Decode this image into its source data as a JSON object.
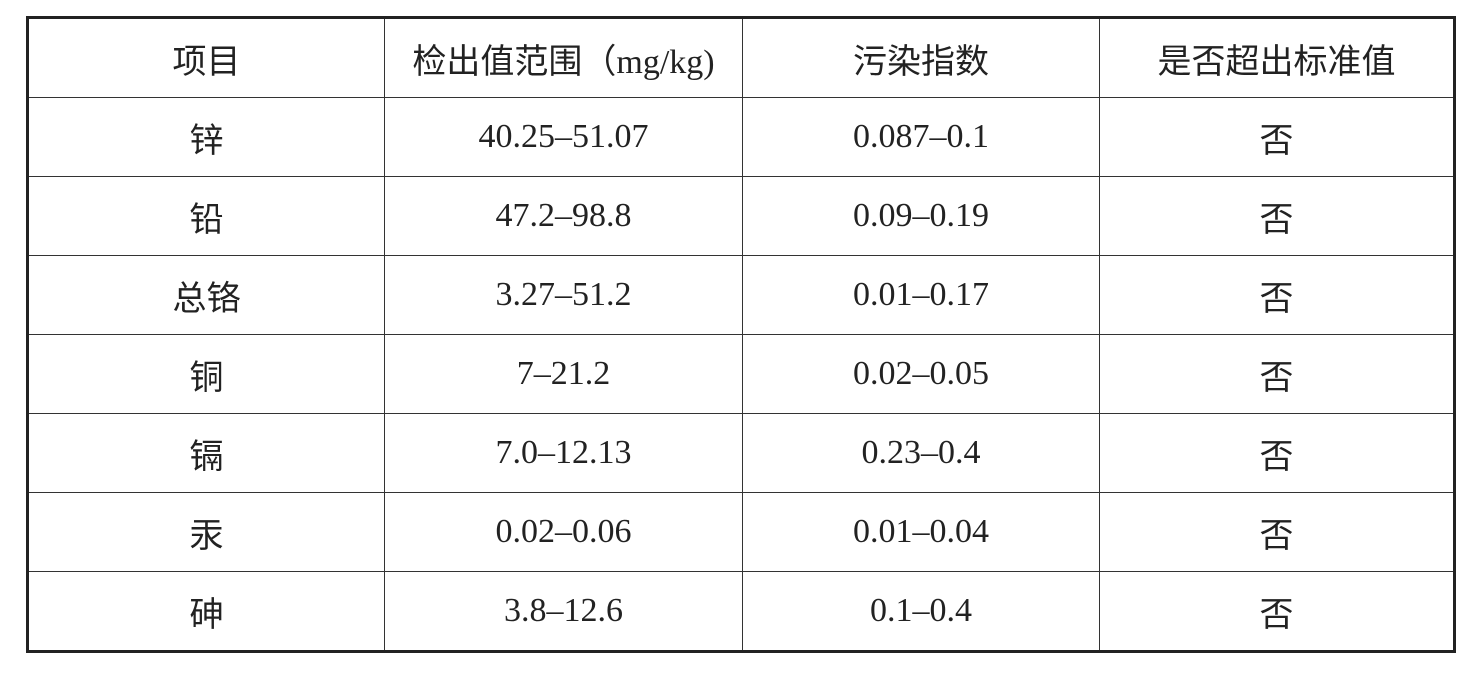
{
  "table": {
    "header": [
      "项目",
      "检出值范围（mg/kg)",
      "污染指数",
      "是否超出标准值"
    ],
    "rows": [
      [
        "锌",
        "40.25–51.07",
        "0.087–0.1",
        "否"
      ],
      [
        "铅",
        "47.2–98.8",
        "0.09–0.19",
        "否"
      ],
      [
        "总铬",
        "3.27–51.2",
        "0.01–0.17",
        "否"
      ],
      [
        "铜",
        "7–21.2",
        "0.02–0.05",
        "否"
      ],
      [
        "镉",
        "7.0–12.13",
        "0.23–0.4",
        "否"
      ],
      [
        "汞",
        "0.02–0.06",
        "0.01–0.04",
        "否"
      ],
      [
        "砷",
        "3.8–12.6",
        "0.1–0.4",
        "否"
      ]
    ]
  }
}
